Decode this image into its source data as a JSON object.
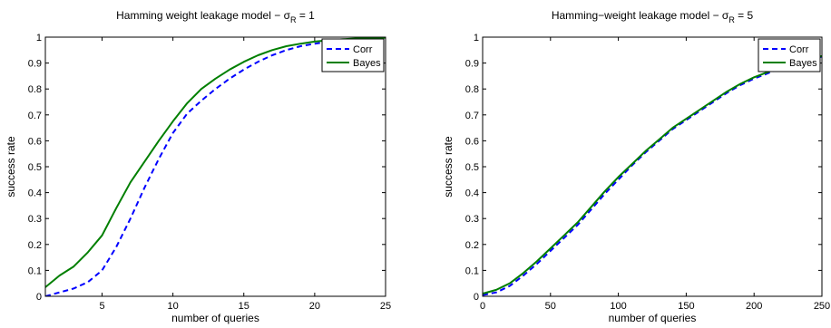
{
  "figure": {
    "colors": {
      "corr": "#0000ff",
      "bayes": "#007f00",
      "axes": "#000000",
      "background": "#ffffff"
    }
  },
  "chart_data": [
    {
      "type": "line",
      "title": "Hamming weight leakage model − σ",
      "title_sub": "R",
      "title_tail": " = 1",
      "xlabel": "number of queries",
      "ylabel": "success rate",
      "xlim": [
        1,
        25
      ],
      "ylim": [
        0,
        1
      ],
      "xticks": [
        5,
        10,
        15,
        20,
        25
      ],
      "xtick_labels": [
        "5",
        "10",
        "15",
        "20",
        "25"
      ],
      "yticks": [
        0,
        0.1,
        0.2,
        0.3,
        0.4,
        0.5,
        0.6,
        0.7,
        0.8,
        0.9,
        1
      ],
      "ytick_labels": [
        "0",
        "0.1",
        "0.2",
        "0.3",
        "0.4",
        "0.5",
        "0.6",
        "0.7",
        "0.8",
        "0.9",
        "1"
      ],
      "grid": false,
      "legend": "top-right",
      "series": [
        {
          "name": "Corr",
          "style": "dashed",
          "x": [
            1,
            2,
            3,
            4,
            5,
            6,
            7,
            8,
            9,
            10,
            11,
            12,
            13,
            14,
            15,
            16,
            17,
            18,
            19,
            20,
            21,
            22,
            23,
            24,
            25
          ],
          "y": [
            0.0,
            0.015,
            0.03,
            0.055,
            0.1,
            0.19,
            0.3,
            0.42,
            0.53,
            0.63,
            0.705,
            0.755,
            0.8,
            0.84,
            0.875,
            0.905,
            0.93,
            0.95,
            0.965,
            0.975,
            0.982,
            0.987,
            0.99,
            0.993,
            0.995
          ]
        },
        {
          "name": "Bayes",
          "style": "solid",
          "x": [
            1,
            2,
            3,
            4,
            5,
            6,
            7,
            8,
            9,
            10,
            11,
            12,
            13,
            14,
            15,
            16,
            17,
            18,
            19,
            20,
            21,
            22,
            23,
            24,
            25
          ],
          "y": [
            0.035,
            0.08,
            0.115,
            0.17,
            0.235,
            0.34,
            0.44,
            0.52,
            0.6,
            0.675,
            0.745,
            0.8,
            0.84,
            0.875,
            0.905,
            0.93,
            0.95,
            0.965,
            0.975,
            0.983,
            0.988,
            0.992,
            0.995,
            0.997,
            0.998
          ]
        }
      ]
    },
    {
      "type": "line",
      "title": "Hamming−weight leakage model − σ",
      "title_sub": "R",
      "title_tail": " = 5",
      "xlabel": "number of queries",
      "ylabel": "success rate",
      "xlim": [
        0,
        250
      ],
      "ylim": [
        0,
        1
      ],
      "xticks": [
        0,
        50,
        100,
        150,
        200,
        250
      ],
      "xtick_labels": [
        "0",
        "50",
        "100",
        "150",
        "200",
        "250"
      ],
      "yticks": [
        0,
        0.1,
        0.2,
        0.3,
        0.4,
        0.5,
        0.6,
        0.7,
        0.8,
        0.9,
        1
      ],
      "ytick_labels": [
        "0",
        "0.1",
        "0.2",
        "0.3",
        "0.4",
        "0.5",
        "0.6",
        "0.7",
        "0.8",
        "0.9",
        "1"
      ],
      "grid": false,
      "legend": "top-right",
      "series": [
        {
          "name": "Corr",
          "style": "dashed",
          "x": [
            0,
            10,
            20,
            30,
            40,
            50,
            60,
            70,
            80,
            90,
            100,
            110,
            120,
            130,
            140,
            150,
            160,
            170,
            180,
            190,
            200,
            210,
            220,
            230,
            240,
            250
          ],
          "y": [
            0.005,
            0.015,
            0.04,
            0.08,
            0.125,
            0.175,
            0.225,
            0.275,
            0.335,
            0.395,
            0.45,
            0.505,
            0.555,
            0.6,
            0.645,
            0.68,
            0.715,
            0.75,
            0.785,
            0.815,
            0.84,
            0.86,
            0.88,
            0.895,
            0.91,
            0.925
          ]
        },
        {
          "name": "Bayes",
          "style": "solid",
          "x": [
            0,
            10,
            20,
            30,
            40,
            50,
            60,
            70,
            80,
            90,
            100,
            110,
            120,
            130,
            140,
            150,
            160,
            170,
            180,
            190,
            200,
            210,
            220,
            230,
            240,
            250
          ],
          "y": [
            0.01,
            0.025,
            0.05,
            0.09,
            0.135,
            0.185,
            0.235,
            0.285,
            0.345,
            0.405,
            0.46,
            0.51,
            0.56,
            0.605,
            0.65,
            0.685,
            0.72,
            0.755,
            0.79,
            0.82,
            0.845,
            0.865,
            0.885,
            0.9,
            0.913,
            0.927
          ]
        }
      ]
    }
  ]
}
